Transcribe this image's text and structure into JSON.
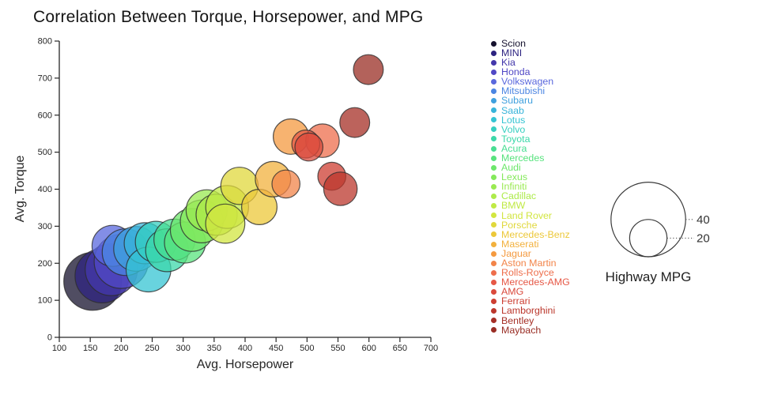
{
  "title": "Correlation Between Torque, Horsepower, and MPG",
  "axis_color": "#262626",
  "text_color": "#262626",
  "chart_data": {
    "type": "scatter",
    "subtype": "bubble",
    "title": "Correlation Between Torque, Horsepower, and MPG",
    "xlabel": "Avg. Horsepower",
    "ylabel": "Avg. Torque",
    "xlim": [
      100,
      700
    ],
    "ylim": [
      0,
      800
    ],
    "x_ticks": [
      100,
      150,
      200,
      250,
      300,
      350,
      400,
      450,
      500,
      550,
      600,
      650,
      700
    ],
    "y_ticks": [
      0,
      100,
      200,
      300,
      400,
      500,
      600,
      700,
      800
    ],
    "grid": false,
    "legend_position": "right",
    "size": {
      "field": "Highway MPG",
      "radius_px_per_unit": 1.18,
      "legend_values": [
        40,
        20
      ]
    },
    "bubble_fill_opacity": 0.75,
    "bubble_stroke": "#2d2d2d",
    "series": [
      {
        "name": "Scion",
        "color": "#16122e",
        "avg_horsepower": 154,
        "avg_torque": 151,
        "highway_mpg": 31
      },
      {
        "name": "MINI",
        "color": "#2d2380",
        "avg_horsepower": 169,
        "avg_torque": 166,
        "highway_mpg": 29
      },
      {
        "name": "Kia",
        "color": "#4438ab",
        "avg_horsepower": 184,
        "avg_torque": 183,
        "highway_mpg": 28
      },
      {
        "name": "Honda",
        "color": "#5149c5",
        "avg_horsepower": 200,
        "avg_torque": 205,
        "highway_mpg": 29
      },
      {
        "name": "Volkswagen",
        "color": "#5a68dd",
        "avg_horsepower": 186,
        "avg_torque": 247,
        "highway_mpg": 22
      },
      {
        "name": "Mitsubishi",
        "color": "#4b85e2",
        "avg_horsepower": 207,
        "avg_torque": 230,
        "highway_mpg": 25
      },
      {
        "name": "Subaru",
        "color": "#3fa0de",
        "avg_horsepower": 224,
        "avg_torque": 239,
        "highway_mpg": 24
      },
      {
        "name": "Saab",
        "color": "#38b4da",
        "avg_horsepower": 238,
        "avg_torque": 254,
        "highway_mpg": 22
      },
      {
        "name": "Lotus",
        "color": "#35c4d3",
        "avg_horsepower": 244,
        "avg_torque": 183,
        "highway_mpg": 24
      },
      {
        "name": "Volvo",
        "color": "#36cfc0",
        "avg_horsepower": 256,
        "avg_torque": 258,
        "highway_mpg": 22
      },
      {
        "name": "Toyota",
        "color": "#3cd8a9",
        "avg_horsepower": 274,
        "avg_torque": 235,
        "highway_mpg": 23
      },
      {
        "name": "Acura",
        "color": "#48de93",
        "avg_horsepower": 286,
        "avg_torque": 264,
        "highway_mpg": 22
      },
      {
        "name": "Mercedes",
        "color": "#58e37e",
        "avg_horsepower": 303,
        "avg_torque": 256,
        "highway_mpg": 22
      },
      {
        "name": "Audi",
        "color": "#6de76b",
        "avg_horsepower": 314,
        "avg_torque": 290,
        "highway_mpg": 23
      },
      {
        "name": "Lexus",
        "color": "#84e95b",
        "avg_horsepower": 330,
        "avg_torque": 313,
        "highway_mpg": 23
      },
      {
        "name": "Infiniti",
        "color": "#9aea52",
        "avg_horsepower": 338,
        "avg_torque": 343,
        "highway_mpg": 22
      },
      {
        "name": "Cadillac",
        "color": "#adeb4b",
        "avg_horsepower": 354,
        "avg_torque": 331,
        "highway_mpg": 22
      },
      {
        "name": "BMW",
        "color": "#c0ea45",
        "avg_horsepower": 371,
        "avg_torque": 352,
        "highway_mpg": 23
      },
      {
        "name": "Land Rover",
        "color": "#d2e640",
        "avg_horsepower": 368,
        "avg_torque": 307,
        "highway_mpg": 21
      },
      {
        "name": "Porsche",
        "color": "#e0d83c",
        "avg_horsepower": 391,
        "avg_torque": 409,
        "highway_mpg": 20
      },
      {
        "name": "Mercedes-Benz",
        "color": "#ecc839",
        "avg_horsepower": 423,
        "avg_torque": 352,
        "highway_mpg": 19
      },
      {
        "name": "Maserati",
        "color": "#f2b13d",
        "avg_horsepower": 445,
        "avg_torque": 427,
        "highway_mpg": 19
      },
      {
        "name": "Jaguar",
        "color": "#f49a40",
        "avg_horsepower": 474,
        "avg_torque": 542,
        "highway_mpg": 19
      },
      {
        "name": "Aston Martin",
        "color": "#f28449",
        "avg_horsepower": 466,
        "avg_torque": 414,
        "highway_mpg": 15
      },
      {
        "name": "Rolls-Royce",
        "color": "#ee6e4c",
        "avg_horsepower": 525,
        "avg_torque": 531,
        "highway_mpg": 18
      },
      {
        "name": "Mercedes-AMG",
        "color": "#e65846",
        "avg_horsepower": 498,
        "avg_torque": 522,
        "highway_mpg": 15
      },
      {
        "name": "AMG",
        "color": "#da4a3c",
        "avg_horsepower": 503,
        "avg_torque": 514,
        "highway_mpg": 15
      },
      {
        "name": "Ferrari",
        "color": "#cd3e31",
        "avg_horsepower": 540,
        "avg_torque": 435,
        "highway_mpg": 15
      },
      {
        "name": "Lamborghini",
        "color": "#bb372c",
        "avg_horsepower": 554,
        "avg_torque": 401,
        "highway_mpg": 18
      },
      {
        "name": "Bentley",
        "color": "#a52f26",
        "avg_horsepower": 577,
        "avg_torque": 580,
        "highway_mpg": 16
      },
      {
        "name": "Maybach",
        "color": "#992d24",
        "avg_horsepower": 599,
        "avg_torque": 723,
        "highway_mpg": 16
      }
    ]
  },
  "size_legend": {
    "title": "Highway MPG",
    "values": [
      "40",
      "20"
    ]
  }
}
